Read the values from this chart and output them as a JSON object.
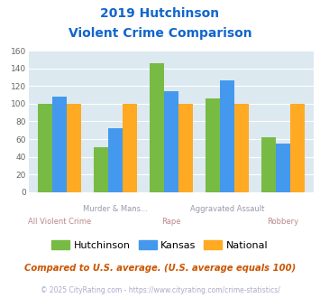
{
  "title_line1": "2019 Hutchinson",
  "title_line2": "Violent Crime Comparison",
  "categories": [
    "All Violent Crime",
    "Murder & Mans...",
    "Rape",
    "Aggravated Assault",
    "Robbery"
  ],
  "hutchinson": [
    100,
    51,
    146,
    106,
    62
  ],
  "kansas": [
    108,
    72,
    114,
    126,
    55
  ],
  "national": [
    100,
    100,
    100,
    100,
    100
  ],
  "hutchinson_color": "#77bb44",
  "kansas_color": "#4499ee",
  "national_color": "#ffaa22",
  "ylim": [
    0,
    160
  ],
  "yticks": [
    0,
    20,
    40,
    60,
    80,
    100,
    120,
    140,
    160
  ],
  "plot_bg": "#dce9f0",
  "title_color": "#1166cc",
  "xlabel_top_color": "#9999aa",
  "xlabel_bottom_color": "#bb8888",
  "footer_text": "Compared to U.S. average. (U.S. average equals 100)",
  "copyright_text": "© 2025 CityRating.com - https://www.cityrating.com/crime-statistics/",
  "footer_color": "#cc5500",
  "copyright_color": "#aaaacc",
  "legend_labels": [
    "Hutchinson",
    "Kansas",
    "National"
  ]
}
